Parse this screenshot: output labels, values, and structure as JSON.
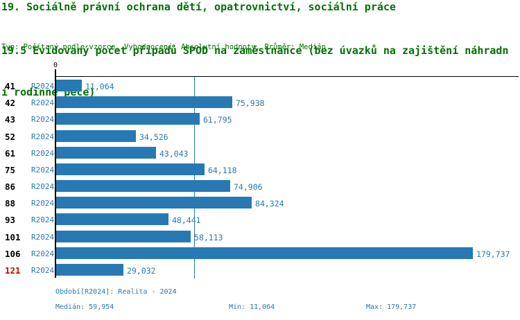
{
  "header": {
    "title_line1": "19. Sociálně právní ochrana dětí, opatrovnictví, sociální práce",
    "title_line2a": "19.5 Evidovaný počet případů SPOD na zaměstnance (bez úvazků na zajištění náhradn",
    "title_line2b": "í rodinné péče)",
    "meta": "Typ: Počítaný podle vzorce, Vyhodnocení: Absolutní hodnoty, Průměr: Medián"
  },
  "chart_data": {
    "type": "bar",
    "orientation": "horizontal",
    "title": "19.5 Evidovaný počet případů SPOD na zaměstnance (bez úvazků na zajištění náhradní rodinné péče)",
    "axis_origin_label": "0",
    "xlim": [
      0,
      200000
    ],
    "grid": false,
    "categories": [
      "41",
      "42",
      "43",
      "52",
      "61",
      "75",
      "86",
      "88",
      "93",
      "101",
      "106",
      "121"
    ],
    "series_label": "R2024",
    "values": [
      11064,
      75938,
      61795,
      34526,
      43043,
      64118,
      74906,
      84324,
      48441,
      58113,
      179737,
      29032
    ],
    "value_labels": [
      "11,064",
      "75,938",
      "61,795",
      "34,526",
      "43,043",
      "64,118",
      "74,906",
      "84,324",
      "48,441",
      "58,113",
      "179,737",
      "29,032"
    ],
    "highlighted_category": "121",
    "median_value": 59954,
    "median_label": "59,954",
    "min_value": 11064,
    "max_value": 179737
  },
  "footer": {
    "period": "Období[R2024]: Realita - 2024",
    "median": "Medián: 59,954",
    "min": "Min: 11,064",
    "max": "Max: 179,737"
  },
  "colors": {
    "title_green": "#007000",
    "bar_blue": "#2779b4",
    "text_blue": "#2779b4",
    "highlight_red": "#cc0000",
    "axis_black": "#000000"
  }
}
